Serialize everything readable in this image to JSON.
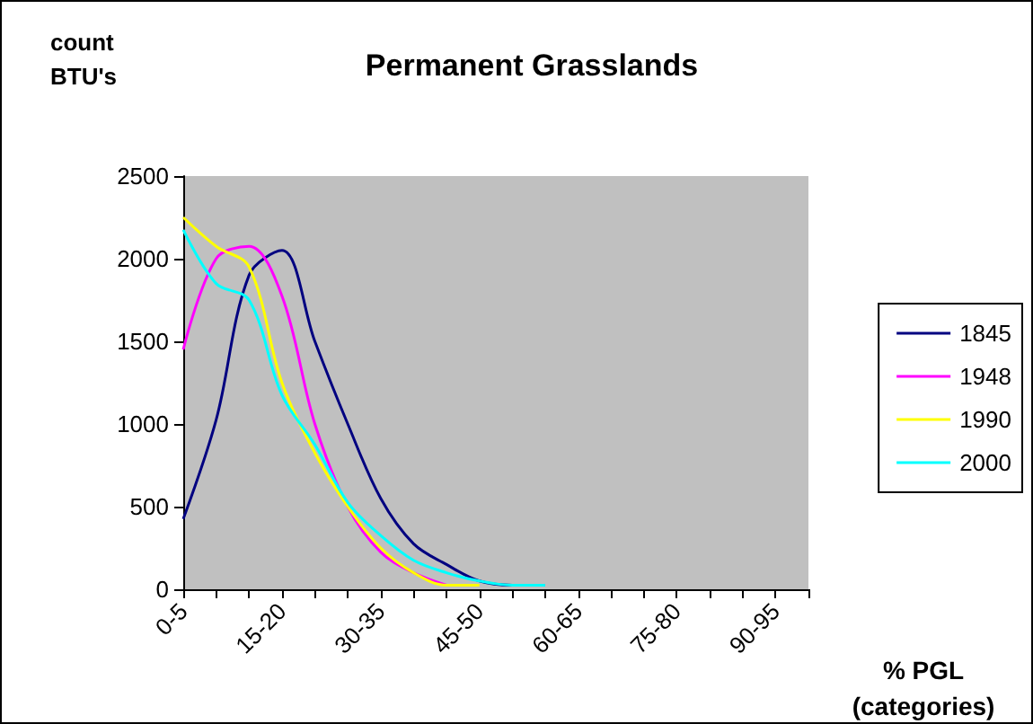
{
  "chart_data": {
    "type": "line",
    "title": "Permanent Grasslands",
    "ylabel": "count\nBTU's",
    "xlabel": "% PGL\n(categories)",
    "categories": [
      "0-5",
      null,
      null,
      "15-20",
      null,
      null,
      "30-35",
      null,
      null,
      "45-50",
      null,
      null,
      "60-65",
      null,
      null,
      "75-80",
      null,
      null,
      "90-95",
      null
    ],
    "series": [
      {
        "name": "1845",
        "color": "#000080",
        "values": [
          425,
          1025,
          1900,
          2050,
          1500,
          1000,
          550,
          275,
          150,
          50,
          25,
          25,
          null,
          null,
          null,
          null,
          null,
          null,
          null,
          null
        ]
      },
      {
        "name": "1948",
        "color": "#ff00ff",
        "values": [
          1450,
          2000,
          2075,
          1775,
          1000,
          500,
          225,
          100,
          25,
          null,
          null,
          null,
          null,
          null,
          null,
          null,
          null,
          null,
          null,
          null
        ]
      },
      {
        "name": "1990",
        "color": "#ffff00",
        "values": [
          2250,
          2075,
          1950,
          1250,
          825,
          500,
          250,
          100,
          25,
          25,
          null,
          null,
          null,
          null,
          null,
          null,
          null,
          null,
          null,
          null
        ]
      },
      {
        "name": "2000",
        "color": "#00ffff",
        "values": [
          2175,
          1850,
          1750,
          1175,
          875,
          525,
          325,
          175,
          100,
          50,
          25,
          25,
          null,
          null,
          null,
          null,
          null,
          null,
          null,
          null
        ]
      }
    ],
    "ylim": [
      0,
      2500
    ],
    "yticks": [
      0,
      500,
      1000,
      1500,
      2000,
      2500
    ],
    "grid": false,
    "legend": "right",
    "marker": "none",
    "line_style": "solid"
  }
}
